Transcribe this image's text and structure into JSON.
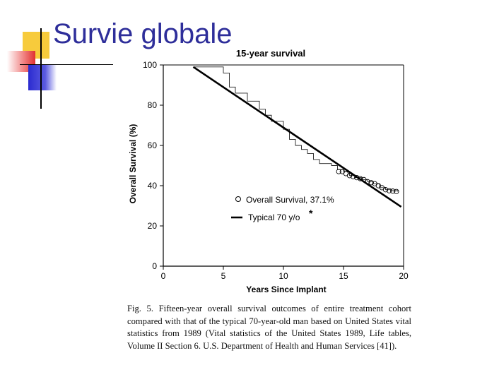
{
  "slide": {
    "title": "Survie globale",
    "caption": "Fig. 5. Fifteen-year overall survival outcomes of entire treatment cohort compared with that of the typical 70-year-old man based on United States vital statistics from 1989 (Vital statistics of the United States 1989, Life tables, Volume II Section 6. U.S. Department of Health and Human Services [41])."
  },
  "colors": {
    "title": "#2e2e9a",
    "accent_yellow": "#f7cb3c",
    "accent_red": "#e03030",
    "accent_blue": "#2b2bd0"
  },
  "chart_data": {
    "type": "line",
    "title": "15-year survival",
    "xlabel": "Years Since Implant",
    "ylabel": "Overall Survival (%)",
    "xlim": [
      0,
      20
    ],
    "ylim": [
      0,
      100
    ],
    "xticks": [
      0,
      5,
      10,
      15,
      20
    ],
    "yticks": [
      0,
      20,
      40,
      60,
      80,
      100
    ],
    "legend_position": "center-left",
    "series": [
      {
        "name": "Overall Survival, 37.1%",
        "style": "step-with-circle-markers",
        "x": [
          2.5,
          3.5,
          5.0,
          5.5,
          6.0,
          7.0,
          8.0,
          8.5,
          9.0,
          10.0,
          10.5,
          11.0,
          11.5,
          12.0,
          12.5,
          13.0,
          14.0,
          14.5,
          15.0,
          15.5,
          16.0,
          16.5,
          17.0,
          17.5,
          18.0,
          18.5,
          19.0,
          19.5
        ],
        "y": [
          99,
          99,
          96,
          89,
          86,
          82,
          78,
          75,
          72,
          68,
          63,
          60,
          58,
          56,
          53,
          51,
          50,
          48,
          47,
          45,
          44,
          43,
          42,
          41,
          39,
          38,
          37.5,
          37.1
        ],
        "marker_x": [
          14.6,
          14.9,
          15.2,
          15.5,
          15.8,
          16.1,
          16.4,
          16.7,
          17.0,
          17.3,
          17.6,
          17.9,
          18.2,
          18.5,
          18.8,
          19.1,
          19.4
        ],
        "marker_y": [
          47,
          47,
          46,
          45,
          44.5,
          44,
          43.5,
          43,
          42,
          41.5,
          41,
          40,
          39,
          38,
          37.5,
          37.3,
          37.1
        ]
      },
      {
        "name": "Typical 70 y/o",
        "marker_note": "*",
        "style": "solid-thick",
        "x": [
          2.5,
          19.8
        ],
        "y": [
          99,
          29.5
        ]
      }
    ]
  }
}
